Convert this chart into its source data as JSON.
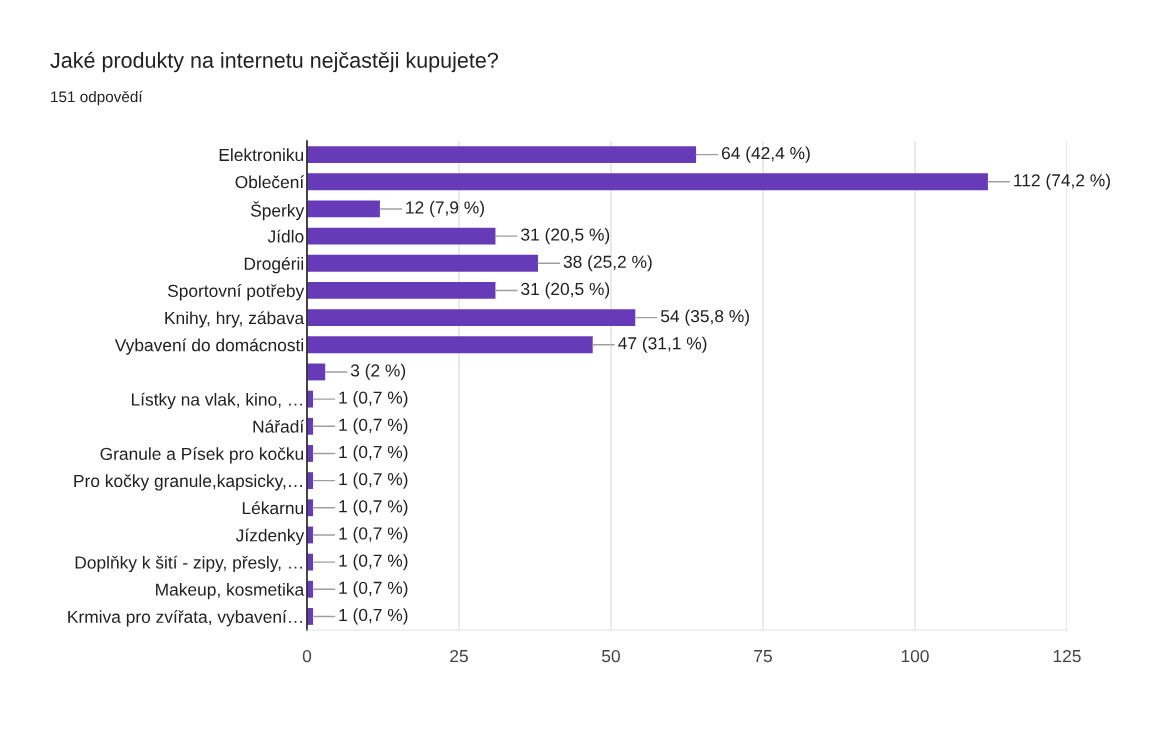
{
  "chart_data": {
    "type": "bar",
    "orientation": "horizontal",
    "title": "Jaké produkty na internetu nejčastěji kupujete?",
    "subtitle": "151 odpovědí",
    "categories": [
      "Elektroniku",
      "Oblečení",
      "Šperky",
      "Jídlo",
      "Drogérii",
      "Sportovní potřeby",
      "Knihy, hry, zábava",
      "Vybavení do domácnosti",
      null,
      "Lístky na vlak, kino, …",
      "Nářadí",
      "Granule a Písek pro kočku",
      "Pro kočky granule,kapsicky,…",
      "Lékarnu",
      "Jízdenky",
      "Doplňky k šití - zipy, přesly, …",
      "Makeup, kosmetika",
      "Krmiva pro zvířata, vybavení…"
    ],
    "values": [
      64,
      112,
      12,
      31,
      38,
      31,
      54,
      47,
      3,
      1,
      1,
      1,
      1,
      1,
      1,
      1,
      1,
      1
    ],
    "value_labels": [
      "64 (42,4 %)",
      "112 (74,2 %)",
      "12 (7,9 %)",
      "31 (20,5 %)",
      "38 (25,2 %)",
      "31 (20,5 %)",
      "54 (35,8 %)",
      "47 (31,1 %)",
      "3 (2 %)",
      "1 (0,7 %)",
      "1 (0,7 %)",
      "1 (0,7 %)",
      "1 (0,7 %)",
      "1 (0,7 %)",
      "1 (0,7 %)",
      "1 (0,7 %)",
      "1 (0,7 %)",
      "1 (0,7 %)"
    ],
    "color": "#673ab7",
    "xlim": [
      0,
      125
    ],
    "xticks": [
      0,
      25,
      50,
      75,
      100,
      125
    ],
    "grid": "x"
  }
}
